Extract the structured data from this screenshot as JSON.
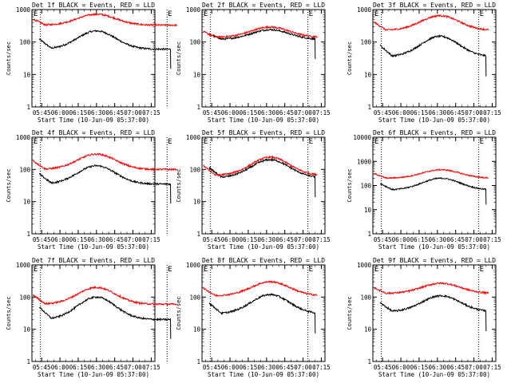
{
  "chart_data": [
    {
      "type": "line",
      "title": "Det 1f BLACK = Events, RED = LLD",
      "xlabel": "Start Time (10-Jun-09 05:37:00)",
      "ylabel": "Counts/sec",
      "x_ticks": [
        "05:45",
        "06:00",
        "06:15",
        "06:30",
        "06:45",
        "07:00",
        "07:15"
      ],
      "y_ticks": [
        "1",
        "10",
        "100",
        "1000"
      ],
      "ylim": [
        1,
        1000
      ],
      "y_scale": "log",
      "marker_label": "E",
      "vlines": [
        "05:44",
        "07:28"
      ],
      "series": [
        {
          "name": "Events",
          "color": "#000000",
          "start": "05:43",
          "end": "07:31",
          "min": 60,
          "max": 220,
          "peak": "06:30",
          "drop": "07:31"
        },
        {
          "name": "LLD",
          "color": "#ff0000",
          "start": "05:38",
          "end": "07:36",
          "min": 330,
          "max": 720,
          "peak": "06:30",
          "drop": ""
        }
      ]
    },
    {
      "type": "line",
      "title": "Det 2f BLACK = Events, RED = LLD",
      "xlabel": "Start Time (10-Jun-09 05:37:00)",
      "ylabel": "Counts/sec",
      "x_ticks": [
        "05:45",
        "06:00",
        "06:15",
        "06:30",
        "06:45",
        "07:00",
        "07:15"
      ],
      "y_ticks": [
        "1",
        "10",
        "100",
        "1000"
      ],
      "ylim": [
        1,
        1000
      ],
      "y_scale": "log",
      "marker_label": "E",
      "vlines": [
        "05:44",
        "07:04"
      ],
      "series": [
        {
          "name": "Events",
          "color": "#000000",
          "start": "05:43",
          "end": "07:10",
          "min": 120,
          "max": 240,
          "peak": "06:33",
          "drop": "07:10"
        },
        {
          "name": "LLD",
          "color": "#ff0000",
          "start": "05:38",
          "end": "07:12",
          "min": 140,
          "max": 290,
          "peak": "06:33",
          "drop": ""
        }
      ]
    },
    {
      "type": "line",
      "title": "Det 3f BLACK = Events, RED = LLD",
      "xlabel": "Start Time (10-Jun-09 05:37:00)",
      "ylabel": "Counts/sec",
      "x_ticks": [
        "05:45",
        "06:00",
        "06:15",
        "06:30",
        "06:45",
        "07:00",
        "07:15"
      ],
      "y_ticks": [
        "1",
        "10",
        "100",
        "1000"
      ],
      "ylim": [
        1,
        1000
      ],
      "y_scale": "log",
      "marker_label": "E",
      "vlines": [
        "05:44",
        "07:04"
      ],
      "series": [
        {
          "name": "Events",
          "color": "#000000",
          "start": "05:43",
          "end": "07:10",
          "min": 35,
          "max": 150,
          "peak": "06:32",
          "drop": "07:10"
        },
        {
          "name": "LLD",
          "color": "#ff0000",
          "start": "05:38",
          "end": "07:12",
          "min": 230,
          "max": 650,
          "peak": "06:32",
          "drop": ""
        }
      ]
    },
    {
      "type": "line",
      "title": "Det 4f BLACK = Events, RED = LLD",
      "xlabel": "Start Time (10-Jun-09 05:37:00)",
      "ylabel": "Counts/sec",
      "x_ticks": [
        "05:45",
        "06:00",
        "06:15",
        "06:30",
        "06:45",
        "07:00",
        "07:15"
      ],
      "y_ticks": [
        "1",
        "10",
        "100",
        "1000"
      ],
      "ylim": [
        1,
        1000
      ],
      "y_scale": "log",
      "marker_label": "E",
      "vlines": [
        "05:44",
        "07:28"
      ],
      "series": [
        {
          "name": "Events",
          "color": "#000000",
          "start": "05:43",
          "end": "07:31",
          "min": 35,
          "max": 130,
          "peak": "06:30",
          "drop": "07:31"
        },
        {
          "name": "LLD",
          "color": "#ff0000",
          "start": "05:38",
          "end": "07:36",
          "min": 100,
          "max": 300,
          "peak": "06:30",
          "drop": ""
        }
      ]
    },
    {
      "type": "line",
      "title": "Det 5f BLACK = Events, RED = LLD",
      "xlabel": "Start Time (10-Jun-09 05:37:00)",
      "ylabel": "Counts/sec",
      "x_ticks": [
        "05:45",
        "06:00",
        "06:15",
        "06:30",
        "06:45",
        "07:00",
        "07:15"
      ],
      "y_ticks": [
        "1",
        "10",
        "100",
        "1000"
      ],
      "ylim": [
        1,
        1000
      ],
      "y_scale": "log",
      "marker_label": "E",
      "vlines": [
        "05:44",
        "07:04"
      ],
      "series": [
        {
          "name": "Events",
          "color": "#000000",
          "start": "05:43",
          "end": "07:10",
          "min": 55,
          "max": 200,
          "peak": "06:33",
          "drop": "07:10"
        },
        {
          "name": "LLD",
          "color": "#ff0000",
          "start": "05:38",
          "end": "07:12",
          "min": 65,
          "max": 240,
          "peak": "06:33",
          "drop": ""
        }
      ]
    },
    {
      "type": "line",
      "title": "Det 6f BLACK = Events, RED = LLD",
      "xlabel": "Start Time (10-Jun-09 05:37:00)",
      "ylabel": "Counts/sec",
      "x_ticks": [
        "05:45",
        "06:00",
        "06:15",
        "06:30",
        "06:45",
        "07:00",
        "07:15"
      ],
      "y_ticks": [
        "1",
        "10",
        "100",
        "1000",
        "10000"
      ],
      "ylim": [
        1,
        10000
      ],
      "y_scale": "log",
      "marker_label": "E",
      "vlines": [
        "05:44",
        "07:04"
      ],
      "series": [
        {
          "name": "Events",
          "color": "#000000",
          "start": "05:43",
          "end": "07:10",
          "min": 65,
          "max": 200,
          "peak": "06:33",
          "drop": "07:10"
        },
        {
          "name": "LLD",
          "color": "#ff0000",
          "start": "05:38",
          "end": "07:12",
          "min": 200,
          "max": 450,
          "peak": "06:33",
          "drop": ""
        }
      ]
    },
    {
      "type": "line",
      "title": "Det 7f BLACK = Events, RED = LLD",
      "xlabel": "Start Time (10-Jun-09 05:37:00)",
      "ylabel": "Counts/sec",
      "x_ticks": [
        "05:45",
        "06:00",
        "06:15",
        "06:30",
        "06:45",
        "07:00",
        "07:15"
      ],
      "y_ticks": [
        "1",
        "10",
        "100",
        "1000"
      ],
      "ylim": [
        1,
        1000
      ],
      "y_scale": "log",
      "marker_label": "E",
      "vlines": [
        "05:44",
        "07:28"
      ],
      "series": [
        {
          "name": "Events",
          "color": "#000000",
          "start": "05:43",
          "end": "07:31",
          "min": 20,
          "max": 100,
          "peak": "06:30",
          "drop": "07:31"
        },
        {
          "name": "LLD",
          "color": "#ff0000",
          "start": "05:38",
          "end": "07:36",
          "min": 60,
          "max": 200,
          "peak": "06:30",
          "drop": ""
        }
      ]
    },
    {
      "type": "line",
      "title": "Det 8f BLACK = Events, RED = LLD",
      "xlabel": "Start Time (10-Jun-09 05:37:00)",
      "ylabel": "Counts/sec",
      "x_ticks": [
        "05:45",
        "06:00",
        "06:15",
        "06:30",
        "06:45",
        "07:00",
        "07:15"
      ],
      "y_ticks": [
        "1",
        "10",
        "100",
        "1000"
      ],
      "ylim": [
        1,
        1000
      ],
      "y_scale": "log",
      "marker_label": "E",
      "vlines": [
        "05:44",
        "07:04"
      ],
      "series": [
        {
          "name": "Events",
          "color": "#000000",
          "start": "05:43",
          "end": "07:10",
          "min": 30,
          "max": 120,
          "peak": "06:33",
          "drop": "07:10"
        },
        {
          "name": "LLD",
          "color": "#ff0000",
          "start": "05:38",
          "end": "07:12",
          "min": 110,
          "max": 300,
          "peak": "06:33",
          "drop": ""
        }
      ]
    },
    {
      "type": "line",
      "title": "Det 9f BLACK = Events, RED = LLD",
      "xlabel": "Start Time (10-Jun-09 05:37:00)",
      "ylabel": "Counts/sec",
      "x_ticks": [
        "05:45",
        "06:00",
        "06:15",
        "06:30",
        "06:45",
        "07:00",
        "07:15"
      ],
      "y_ticks": [
        "1",
        "10",
        "100",
        "1000"
      ],
      "ylim": [
        1,
        1000
      ],
      "y_scale": "log",
      "marker_label": "E",
      "vlines": [
        "05:44",
        "07:04"
      ],
      "series": [
        {
          "name": "Events",
          "color": "#000000",
          "start": "05:43",
          "end": "07:10",
          "min": 35,
          "max": 110,
          "peak": "06:33",
          "drop": "07:10"
        },
        {
          "name": "LLD",
          "color": "#ff0000",
          "start": "05:38",
          "end": "07:12",
          "min": 130,
          "max": 270,
          "peak": "06:33",
          "drop": ""
        }
      ]
    }
  ]
}
